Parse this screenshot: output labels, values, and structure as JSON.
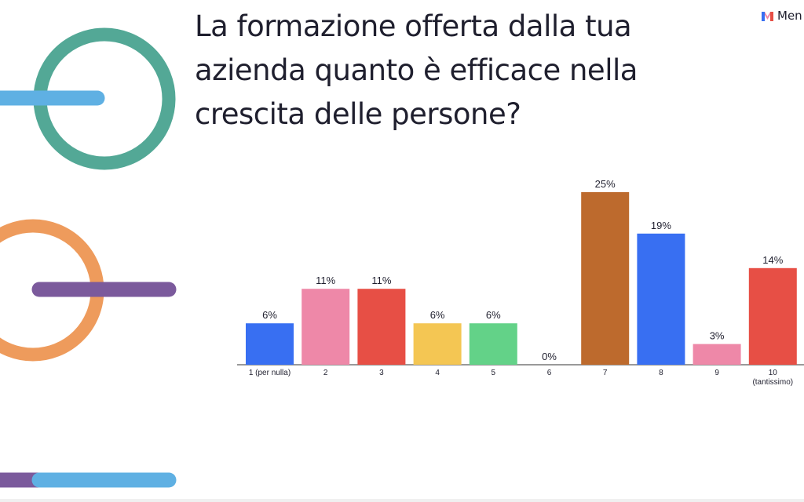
{
  "slide": {
    "title": "La formazione offerta dalla tua azienda quanto è efficace nella crescita delle persone?",
    "brand_name": "Men",
    "brand_icon": "mentimeter-logo-icon"
  },
  "colors": {
    "teal": "#53a896",
    "light_blue": "#5fb0e3",
    "orange": "#ee9b5c",
    "purple": "#7b5a9c",
    "text": "#1f1f2e"
  },
  "chart_data": {
    "type": "bar",
    "title": "La formazione offerta dalla tua azienda quanto è efficace nella crescita delle persone?",
    "xlabel": "",
    "ylabel": "",
    "categories": [
      "1 (per nulla)",
      "2",
      "3",
      "4",
      "5",
      "6",
      "7",
      "8",
      "9",
      "10 (tantissimo)"
    ],
    "values": [
      6,
      11,
      11,
      6,
      6,
      0,
      25,
      19,
      3,
      14
    ],
    "value_labels": [
      "6%",
      "11%",
      "11%",
      "6%",
      "6%",
      "0%",
      "25%",
      "19%",
      "3%",
      "14%"
    ],
    "bar_colors": [
      "#386ff2",
      "#ee88a8",
      "#e74f45",
      "#f4c653",
      "#63d288",
      "#386ff2",
      "#bd6a2d",
      "#386ff2",
      "#ee88a8",
      "#e74f45"
    ],
    "ylim": [
      0,
      25
    ],
    "grid": false,
    "legend": "none"
  }
}
